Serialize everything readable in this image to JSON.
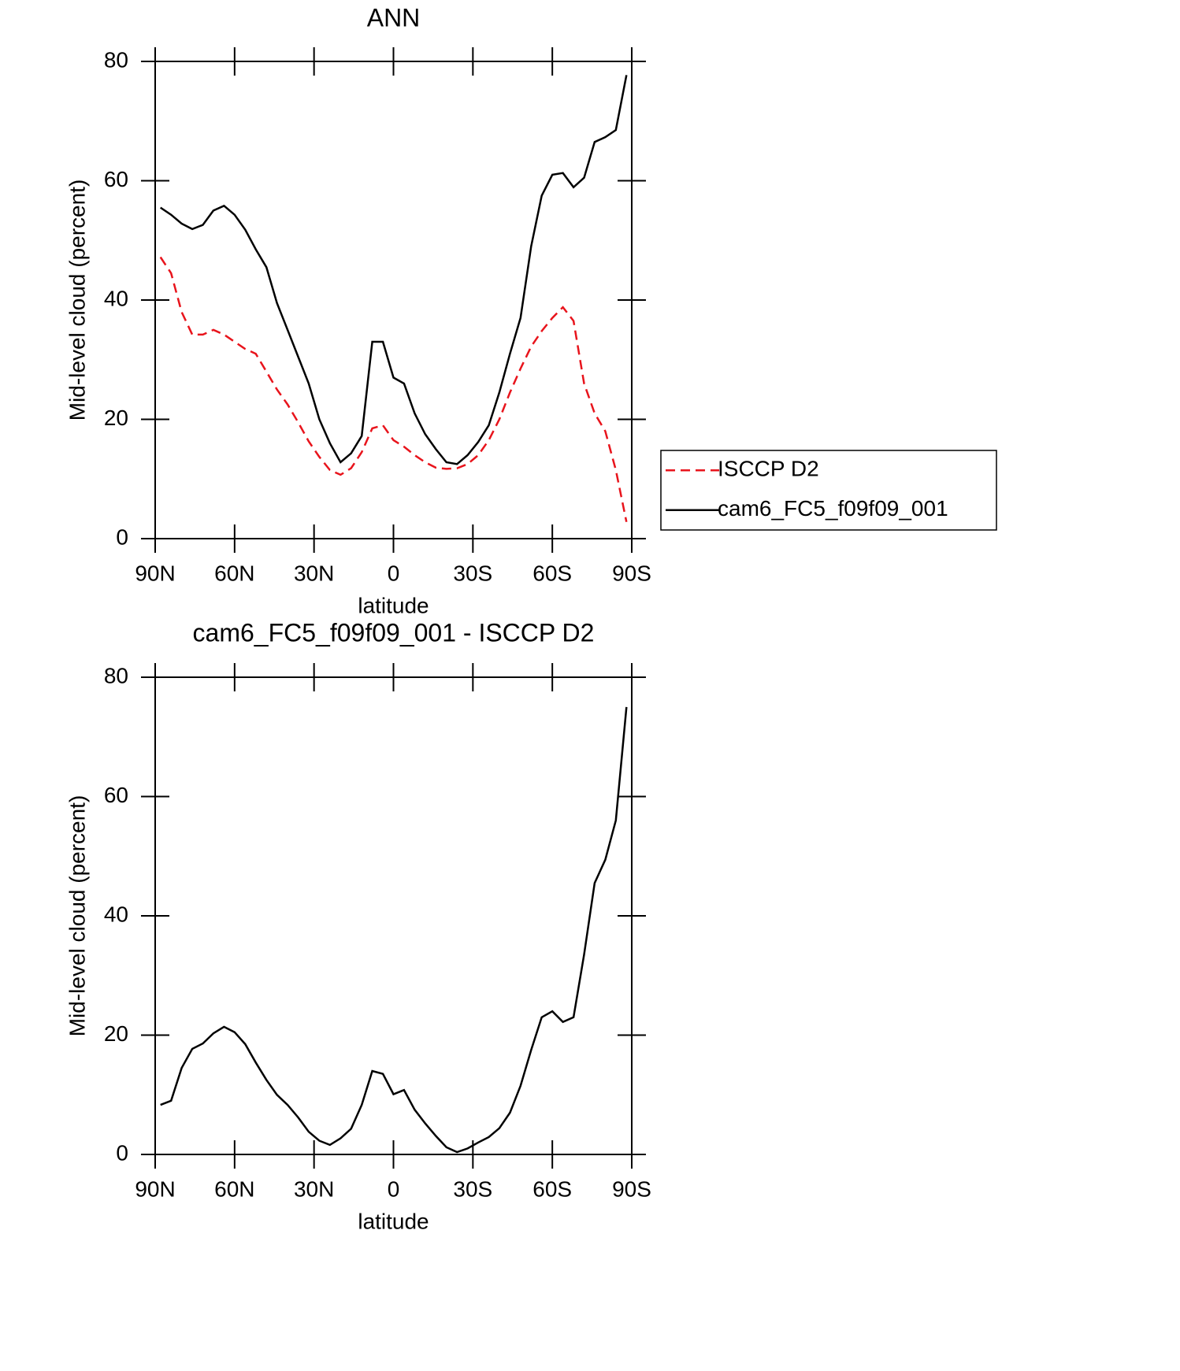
{
  "chart_data": [
    {
      "type": "line",
      "title": "ANN",
      "xlabel": "latitude",
      "ylabel": "Mid-level cloud (percent)",
      "x": [
        88,
        84,
        80,
        76,
        72,
        68,
        64,
        60,
        56,
        52,
        48,
        44,
        40,
        36,
        32,
        28,
        24,
        20,
        16,
        12,
        8,
        4,
        0,
        -4,
        -8,
        -12,
        -16,
        -20,
        -24,
        -28,
        -32,
        -36,
        -40,
        -44,
        -48,
        -52,
        -56,
        -60,
        -64,
        -68,
        -72,
        -76,
        -80,
        -84,
        -88
      ],
      "xlim": [
        90,
        -90
      ],
      "xticks": [
        {
          "value": 90,
          "label": "90N"
        },
        {
          "value": 60,
          "label": "60N"
        },
        {
          "value": 30,
          "label": "30N"
        },
        0,
        {
          "value": -30,
          "label": "30S"
        },
        {
          "value": -60,
          "label": "60S"
        },
        {
          "value": -90,
          "label": "90S"
        }
      ],
      "ylim": [
        0,
        80
      ],
      "yticks": [
        0,
        20,
        40,
        60,
        80
      ],
      "legend": "outside-right",
      "series": [
        {
          "name": "ISCCP D2",
          "color": "#e8141c",
          "style": "dashed",
          "values": [
            47.2,
            44.5,
            38,
            34.2,
            34.2,
            35,
            34.2,
            33,
            31.8,
            31,
            28,
            25,
            22.5,
            19.5,
            16.3,
            13.7,
            11.5,
            10.7,
            11.8,
            14.5,
            18.5,
            19,
            16.5,
            15.4,
            14,
            12.8,
            11.9,
            11.7,
            11.8,
            12.5,
            14,
            16.5,
            20,
            24.5,
            28.5,
            32.2,
            34.8,
            37,
            38.8,
            36.5,
            26,
            21,
            18,
            11.5,
            2.8
          ]
        },
        {
          "name": "cam6_FC5_f09f09_001",
          "color": "#000000",
          "style": "solid",
          "values": [
            55.5,
            54.3,
            52.8,
            51.9,
            52.6,
            55,
            55.8,
            54.3,
            51.8,
            48.5,
            45.5,
            39.5,
            35,
            30.5,
            26,
            20,
            16,
            12.8,
            14.3,
            17.2,
            33,
            33,
            27,
            26,
            21,
            17.5,
            15,
            12.8,
            12.5,
            14,
            16.2,
            19,
            24.5,
            31,
            37,
            49,
            57.5,
            61,
            61.3,
            58.9,
            60.5,
            66.5,
            67.3,
            68.5,
            77.7
          ]
        }
      ]
    },
    {
      "type": "line",
      "title": "cam6_FC5_f09f09_001 - ISCCP D2",
      "xlabel": "latitude",
      "ylabel": "Mid-level cloud (percent)",
      "x": [
        88,
        84,
        80,
        76,
        72,
        68,
        64,
        60,
        56,
        52,
        48,
        44,
        40,
        36,
        32,
        28,
        24,
        20,
        16,
        12,
        8,
        4,
        0,
        -4,
        -8,
        -12,
        -16,
        -20,
        -24,
        -28,
        -32,
        -36,
        -40,
        -44,
        -48,
        -52,
        -56,
        -60,
        -64,
        -68,
        -72,
        -76,
        -80,
        -84,
        -88
      ],
      "xlim": [
        90,
        -90
      ],
      "xticks": [
        {
          "value": 90,
          "label": "90N"
        },
        {
          "value": 60,
          "label": "60N"
        },
        {
          "value": 30,
          "label": "30N"
        },
        0,
        {
          "value": -30,
          "label": "30S"
        },
        {
          "value": -60,
          "label": "60S"
        },
        {
          "value": -90,
          "label": "90S"
        }
      ],
      "ylim": [
        0,
        80
      ],
      "yticks": [
        0,
        20,
        40,
        60,
        80
      ],
      "series": [
        {
          "color": "#000000",
          "style": "solid",
          "values": [
            8.3,
            9,
            14.5,
            17.7,
            18.6,
            20.3,
            21.4,
            20.5,
            18.5,
            15.4,
            12.5,
            10,
            8.3,
            6.2,
            3.8,
            2.3,
            1.6,
            2.7,
            4.3,
            8.3,
            14,
            13.5,
            10.1,
            10.8,
            7.5,
            5.2,
            3.1,
            1.2,
            0.4,
            1,
            2,
            2.9,
            4.4,
            7,
            11.5,
            17.5,
            23,
            24,
            22.2,
            23,
            33.5,
            45.5,
            49.4,
            56,
            75
          ]
        }
      ]
    }
  ]
}
